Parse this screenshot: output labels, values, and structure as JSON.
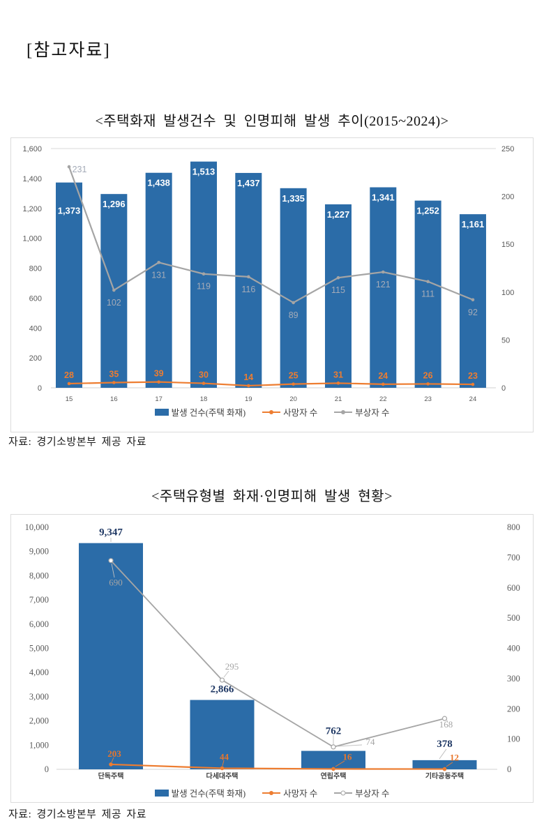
{
  "page": {
    "header": "[참고자료]",
    "sources": [
      "자료: 경기소방본부 제공 자료",
      "자료: 경기소방본부 제공 자료"
    ]
  },
  "chart_data": [
    {
      "type": "bar+line",
      "title": "<주택화재 발생건수 및 인명피해 발생 추이(2015~2024)>",
      "categories": [
        "15",
        "16",
        "17",
        "18",
        "19",
        "20",
        "21",
        "22",
        "23",
        "24"
      ],
      "series": [
        {
          "name": "발생 건수(주택 화재)",
          "type": "bar",
          "axis": "left",
          "color": "#2B6CA8",
          "values": [
            1373,
            1296,
            1438,
            1513,
            1437,
            1335,
            1227,
            1341,
            1252,
            1161
          ]
        },
        {
          "name": "사망자 수",
          "type": "line",
          "axis": "left",
          "color": "#ED7D31",
          "values": [
            28,
            35,
            39,
            30,
            14,
            25,
            31,
            24,
            26,
            23
          ]
        },
        {
          "name": "부상자 수",
          "type": "line",
          "axis": "right",
          "color": "#A5A5A5",
          "values": [
            231,
            102,
            131,
            119,
            116,
            89,
            115,
            121,
            111,
            92
          ]
        }
      ],
      "left_axis": {
        "min": 0,
        "max": 1600,
        "step": 200
      },
      "right_axis": {
        "min": 0,
        "max": 250,
        "step": 50
      },
      "legend_position": "bottom",
      "grid": false
    },
    {
      "type": "bar+line",
      "title": "<주택유형별 화재·인명피해 발생 현황>",
      "categories": [
        "단독주택",
        "다세대주택",
        "연립주택",
        "기타공동주택"
      ],
      "series": [
        {
          "name": "발생 건수(주택 화재)",
          "type": "bar",
          "axis": "left",
          "color": "#2B6CA8",
          "values": [
            9347,
            2866,
            762,
            378
          ]
        },
        {
          "name": "사망자 수",
          "type": "line",
          "axis": "left",
          "color": "#ED7D31",
          "values": [
            203,
            44,
            16,
            12
          ]
        },
        {
          "name": "부상자 수",
          "type": "line",
          "axis": "right",
          "color": "#A5A5A5",
          "values": [
            690,
            295,
            74,
            168
          ]
        }
      ],
      "left_axis": {
        "min": 0,
        "max": 10000,
        "step": 1000
      },
      "right_axis": {
        "min": 0,
        "max": 800,
        "step": 100
      },
      "legend_position": "bottom",
      "grid": false
    }
  ]
}
